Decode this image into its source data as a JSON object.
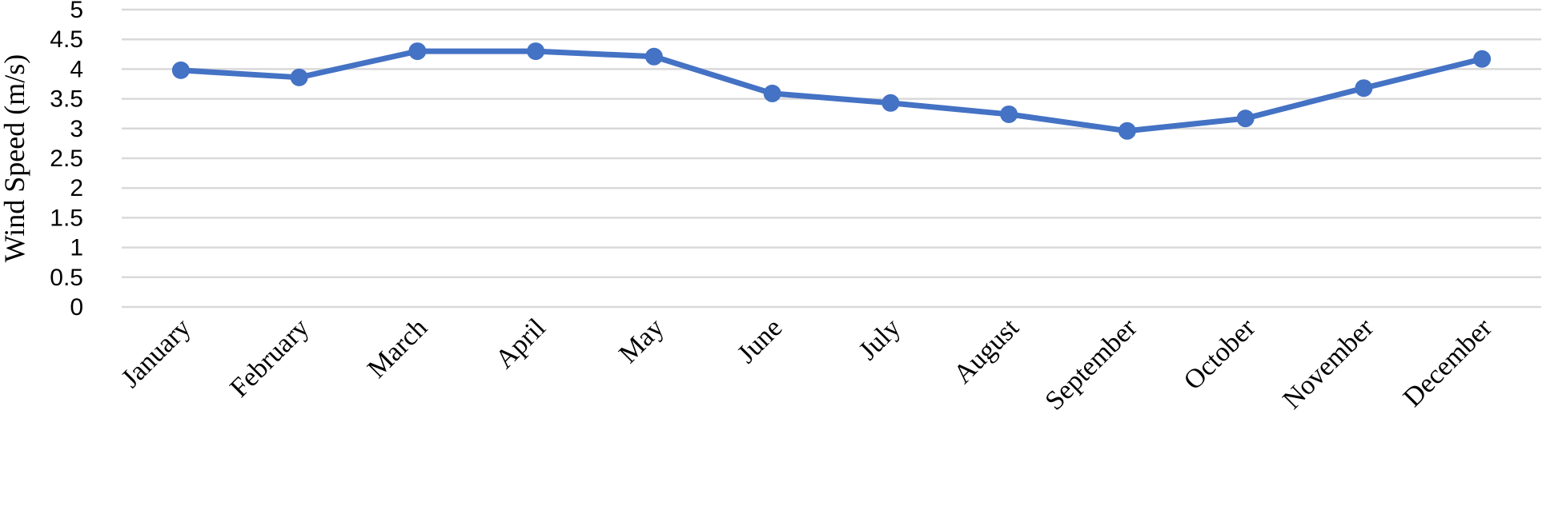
{
  "chart_data": {
    "type": "line",
    "title": "",
    "xlabel": "",
    "ylabel": "Wind Speed (m/s)",
    "categories": [
      "January",
      "February",
      "March",
      "April",
      "May",
      "June",
      "July",
      "August",
      "September",
      "October",
      "November",
      "December"
    ],
    "series": [
      {
        "values": [
          3.98,
          3.86,
          4.3,
          4.3,
          4.21,
          3.59,
          3.43,
          3.24,
          2.96,
          3.17,
          3.68,
          4.17
        ],
        "color": "#4472c4"
      }
    ],
    "ylim": [
      0,
      5
    ],
    "y_ticks": [
      "0",
      "0.5",
      "1",
      "1.5",
      "2",
      "2.5",
      "3",
      "3.5",
      "4",
      "4.5",
      "5"
    ],
    "grid": true,
    "legend": "none"
  }
}
